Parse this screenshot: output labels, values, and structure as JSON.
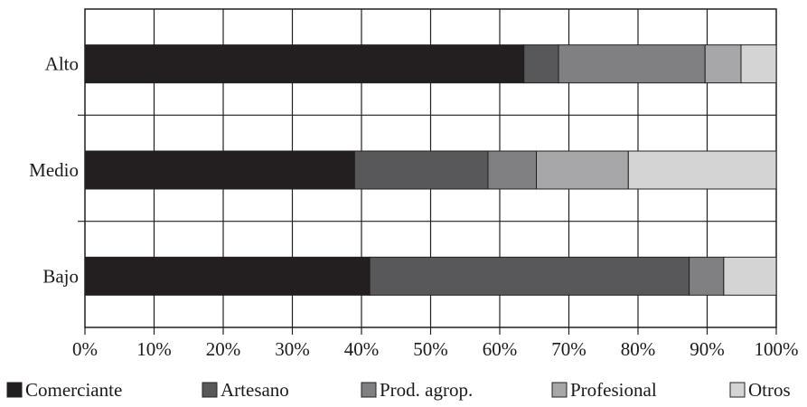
{
  "chart_data": {
    "type": "bar",
    "orientation": "horizontal",
    "stacked": true,
    "percent": true,
    "title": "",
    "xlabel": "",
    "ylabel": "",
    "xlim": [
      0,
      100
    ],
    "grid": true,
    "legend_position": "bottom",
    "categories": [
      "Alto",
      "Medio",
      "Bajo"
    ],
    "x_ticks": [
      "0%",
      "10%",
      "20%",
      "30%",
      "40%",
      "50%",
      "60%",
      "70%",
      "80%",
      "90%",
      "100%"
    ],
    "series": [
      {
        "name": "Comerciante",
        "color": "#231f20",
        "values": [
          63.5,
          39.0,
          41.2
        ]
      },
      {
        "name": "Artesano",
        "color": "#58585a",
        "values": [
          5.0,
          19.3,
          46.2
        ]
      },
      {
        "name": "Prod. agrop.",
        "color": "#808083",
        "values": [
          21.2,
          7.0,
          5.0
        ]
      },
      {
        "name": "Profesional",
        "color": "#a7a7a9",
        "values": [
          5.2,
          13.3,
          0.0
        ]
      },
      {
        "name": "Otros",
        "color": "#d4d4d5",
        "values": [
          5.1,
          21.4,
          7.6
        ]
      }
    ]
  }
}
